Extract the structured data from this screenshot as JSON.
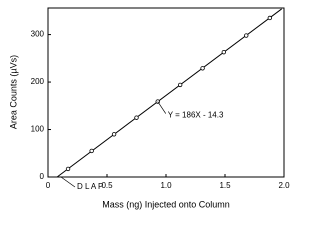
{
  "chart_data": {
    "type": "scatter",
    "x_label": "Mass (ng) Injected onto Column",
    "y_label": "Area Counts (µVs)",
    "x": [
      0.17,
      0.37,
      0.56,
      0.75,
      0.93,
      1.12,
      1.31,
      1.49,
      1.68,
      1.88
    ],
    "values": [
      17,
      55,
      90,
      125,
      159,
      194,
      229,
      263,
      298,
      335
    ],
    "color": "#000000",
    "fit": {
      "x": [
        0.08,
        1.98
      ],
      "values": [
        0.6,
        354
      ]
    },
    "xlim": [
      0,
      2
    ],
    "xticks": [
      0,
      0.5,
      {
        "value": 1,
        "label": "1.0"
      },
      1.5,
      {
        "value": 2,
        "label": "2.0"
      }
    ],
    "ylim": [
      0,
      356
    ],
    "yticks": [
      0,
      100,
      200,
      300
    ],
    "annotations": [
      {
        "text": "Y = 186X - 14.3",
        "x": 0.93,
        "y": 159
      },
      {
        "text": "D L A P",
        "x": 0.11,
        "y": 0
      }
    ]
  }
}
